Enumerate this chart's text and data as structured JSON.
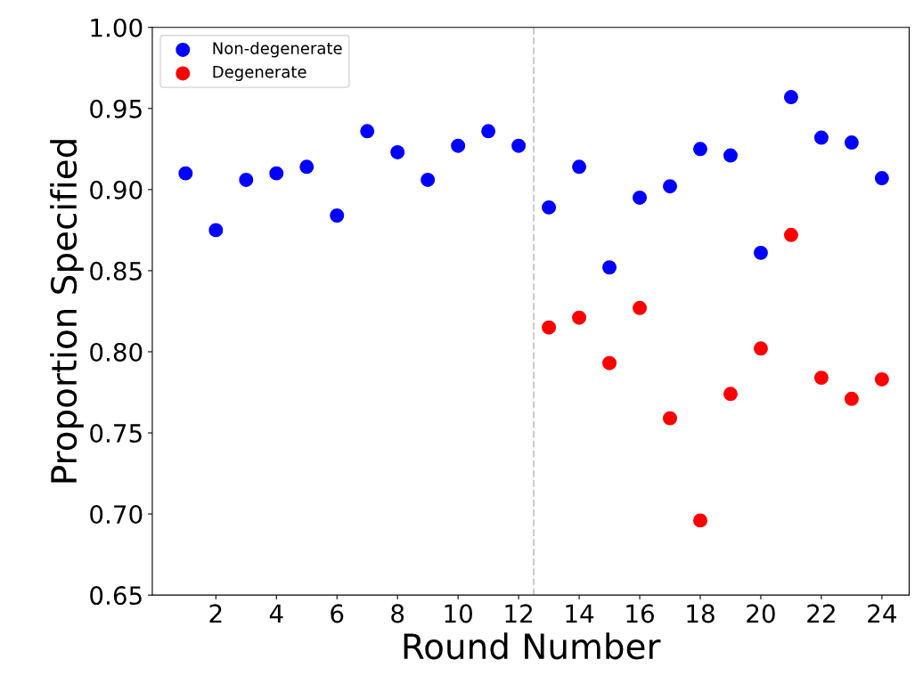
{
  "chart_data": {
    "type": "scatter",
    "xlabel": "Round Number",
    "ylabel": "Proportion Specified",
    "x": [
      1,
      2,
      3,
      4,
      5,
      6,
      7,
      8,
      9,
      10,
      11,
      12,
      13,
      14,
      15,
      16,
      17,
      18,
      19,
      20,
      21,
      22,
      23,
      24
    ],
    "series": [
      {
        "name": "Non-degenerate",
        "color": "#0000ff",
        "values": [
          0.91,
          0.875,
          0.906,
          0.91,
          0.914,
          0.884,
          0.936,
          0.923,
          0.906,
          0.927,
          0.936,
          0.927,
          0.889,
          0.914,
          0.852,
          0.895,
          0.902,
          0.925,
          0.921,
          0.861,
          0.957,
          0.932,
          0.929,
          0.907
        ]
      },
      {
        "name": "Degenerate",
        "color": "#ff0000",
        "values": [
          null,
          null,
          null,
          null,
          null,
          null,
          null,
          null,
          null,
          null,
          null,
          null,
          0.815,
          0.821,
          0.793,
          0.827,
          0.759,
          0.696,
          0.774,
          0.802,
          0.872,
          0.784,
          0.771,
          0.783
        ]
      }
    ],
    "xlim": [
      -0.1,
      24.9
    ],
    "xticks": [
      2,
      4,
      6,
      8,
      10,
      12,
      14,
      16,
      18,
      20,
      22,
      24
    ],
    "ylim": [
      0.65,
      1.0
    ],
    "yticks": [
      {
        "value": 0.65,
        "label": "0.65"
      },
      {
        "value": 0.7,
        "label": "0.70"
      },
      {
        "value": 0.75,
        "label": "0.75"
      },
      {
        "value": 0.8,
        "label": "0.80"
      },
      {
        "value": 0.85,
        "label": "0.85"
      },
      {
        "value": 0.9,
        "label": "0.90"
      },
      {
        "value": 0.95,
        "label": "0.95"
      },
      {
        "value": 1.0,
        "label": "1.00"
      }
    ],
    "ref_lines": [
      {
        "axis": "x",
        "value": 12.5,
        "color": "#cccccc",
        "line_style": "dashed"
      }
    ],
    "legend": "top left",
    "marker": "circle",
    "grid": false
  }
}
